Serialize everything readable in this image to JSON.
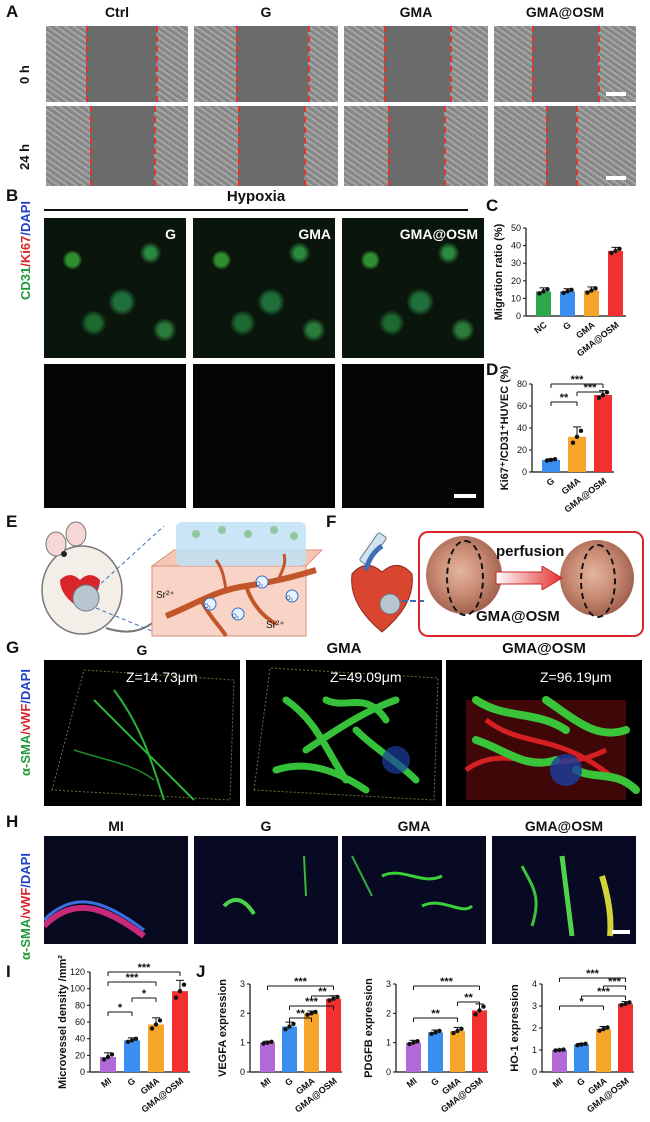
{
  "panels": {
    "A": "A",
    "B": "B",
    "C": "C",
    "D": "D",
    "E": "E",
    "F": "F",
    "G": "G",
    "H": "H",
    "I": "I",
    "J": "J"
  },
  "panel_A": {
    "columns": [
      "Ctrl",
      "G",
      "GMA",
      "GMA@OSM"
    ],
    "rows": [
      "0 h",
      "24 h"
    ]
  },
  "panel_B": {
    "header": "Hypoxia",
    "row_label": {
      "cd31": "CD31",
      "ki67": "/Ki67",
      "dapi": "/DAPI"
    },
    "tags": [
      "G",
      "GMA",
      "GMA@OSM"
    ]
  },
  "panel_E": {
    "ion1": "Sr²⁺",
    "ion2": "Sr²⁺",
    "o2": "O₂"
  },
  "panel_F": {
    "arrow_label": "perfusion",
    "box_label": "GMA@OSM"
  },
  "panel_G": {
    "columns": [
      "G",
      "GMA",
      "GMA@OSM"
    ],
    "z_labels": [
      "Z=14.73μm",
      "Z=49.09μm",
      "Z=96.19μm"
    ],
    "row_label": {
      "sma": "α-SMA",
      "vwf": "/vWF",
      "dapi": "/DAPI"
    }
  },
  "panel_H": {
    "columns": [
      "MI",
      "G",
      "GMA",
      "GMA@OSM"
    ],
    "row_label": {
      "sma": "α-SMA",
      "vwf": "/vWF",
      "dapi": "/DAPI"
    }
  },
  "colors": {
    "MI": "#b36ad6",
    "NC": "#2ca84a",
    "G": "#3a8ef0",
    "GMA": "#f7a52a",
    "GMA@OSM": "#f2302f",
    "line_red": "#e0352b"
  },
  "chart_data": [
    {
      "id": "C",
      "type": "bar",
      "categories": [
        "NC",
        "G",
        "GMA",
        "GMA@OSM"
      ],
      "values": [
        14,
        14,
        14.5,
        37
      ],
      "errors": [
        2,
        1.5,
        2,
        2
      ],
      "ylabel": "Migration ratio (%)",
      "ylim": [
        0,
        50
      ],
      "yticks": [
        0,
        10,
        20,
        30,
        40,
        50
      ],
      "significance": [
        {
          "label": "***"
        }
      ]
    },
    {
      "id": "D",
      "type": "bar",
      "categories": [
        "G",
        "GMA",
        "GMA@OSM"
      ],
      "values": [
        11,
        32,
        70
      ],
      "errors": [
        1,
        9,
        4
      ],
      "ylabel": "Ki67⁺/CD31⁺HUVEC (%)",
      "ylim": [
        0,
        80
      ],
      "yticks": [
        0,
        20,
        40,
        60,
        80
      ],
      "significance": [
        {
          "label": "***"
        },
        {
          "label": "**"
        },
        {
          "label": "***"
        }
      ]
    },
    {
      "id": "I",
      "type": "bar",
      "categories": [
        "MI",
        "G",
        "GMA",
        "GMA@OSM"
      ],
      "values": [
        18,
        38,
        57,
        97
      ],
      "errors": [
        5,
        3,
        8,
        13
      ],
      "ylabel": "Microvessel density /mm²",
      "ylim": [
        0,
        120
      ],
      "yticks": [
        0,
        20,
        40,
        60,
        80,
        100,
        120
      ],
      "significance": [
        {
          "label": "*"
        },
        {
          "label": "*"
        },
        {
          "label": "***"
        },
        {
          "label": "***"
        }
      ]
    },
    {
      "id": "J1",
      "type": "bar",
      "categories": [
        "MI",
        "G",
        "GMA",
        "GMA@OSM"
      ],
      "values": [
        1.0,
        1.55,
        2.0,
        2.5
      ],
      "errors": [
        0.05,
        0.15,
        0.08,
        0.1
      ],
      "ylabel": "VEGFA expression",
      "ylim": [
        0,
        3
      ],
      "yticks": [
        0,
        1,
        2,
        3
      ],
      "significance": [
        {
          "label": "**"
        },
        {
          "label": "***"
        },
        {
          "label": "**"
        },
        {
          "label": "***"
        }
      ]
    },
    {
      "id": "J2",
      "type": "bar",
      "categories": [
        "MI",
        "G",
        "GMA",
        "GMA@OSM"
      ],
      "values": [
        1.0,
        1.35,
        1.4,
        2.1
      ],
      "errors": [
        0.08,
        0.08,
        0.12,
        0.22
      ],
      "ylabel": "PDGFB expression",
      "ylim": [
        0,
        3
      ],
      "yticks": [
        0,
        1,
        2,
        3
      ],
      "significance": [
        {
          "label": "**"
        },
        {
          "label": "**"
        },
        {
          "label": "***"
        }
      ]
    },
    {
      "id": "J3",
      "type": "bar",
      "categories": [
        "MI",
        "G",
        "GMA",
        "GMA@OSM"
      ],
      "values": [
        1.0,
        1.25,
        1.95,
        3.1
      ],
      "errors": [
        0.03,
        0.05,
        0.12,
        0.1
      ],
      "ylabel": "HO-1 expression",
      "ylim": [
        0,
        4
      ],
      "yticks": [
        0,
        1,
        2,
        3,
        4
      ],
      "significance": [
        {
          "label": "*"
        },
        {
          "label": "***"
        },
        {
          "label": "***"
        },
        {
          "label": "***"
        }
      ]
    }
  ]
}
